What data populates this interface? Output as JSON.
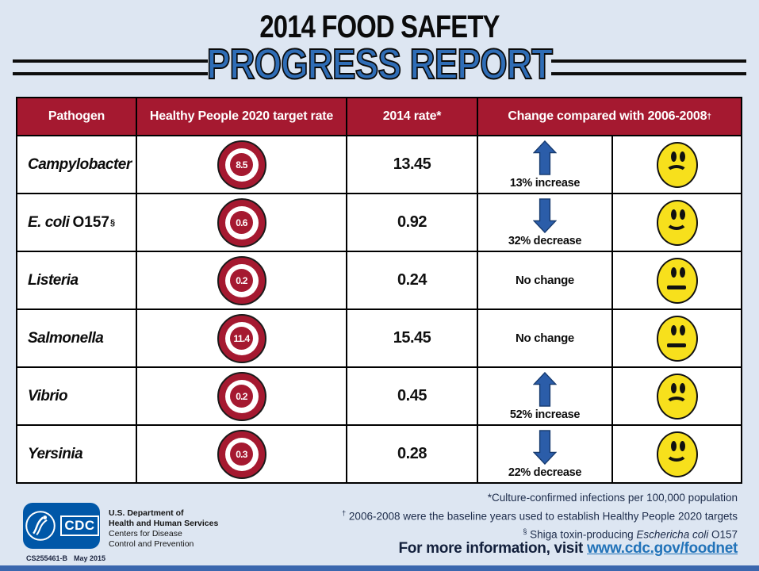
{
  "header": {
    "title_line1": "2014 FOOD SAFETY",
    "title_line2": "PROGRESS REPORT"
  },
  "table": {
    "header": {
      "pathogen": "Pathogen",
      "target": "Healthy People 2020 target rate",
      "rate": "2014 rate*",
      "change": "Change compared with 2006-2008",
      "change_sup": "†"
    },
    "rows": [
      {
        "name": "Campylobacter",
        "name_suffix": "",
        "sup": "",
        "target": "8.5",
        "rate": "13.45",
        "direction": "up",
        "change_label": "13% increase",
        "face": "sad"
      },
      {
        "name": "E. coli",
        "name_suffix": "O157",
        "sup": "§",
        "target": "0.6",
        "rate": "0.92",
        "direction": "down",
        "change_label": "32% decrease",
        "face": "happy"
      },
      {
        "name": "Listeria",
        "name_suffix": "",
        "sup": "",
        "target": "0.2",
        "rate": "0.24",
        "direction": "none",
        "change_label": "No change",
        "face": "neutral"
      },
      {
        "name": "Salmonella",
        "name_suffix": "",
        "sup": "",
        "target": "11.4",
        "rate": "15.45",
        "direction": "none",
        "change_label": "No change",
        "face": "neutral"
      },
      {
        "name": "Vibrio",
        "name_suffix": "",
        "sup": "",
        "target": "0.2",
        "rate": "0.45",
        "direction": "up",
        "change_label": "52% increase",
        "face": "sad"
      },
      {
        "name": "Yersinia",
        "name_suffix": "",
        "sup": "",
        "target": "0.3",
        "rate": "0.28",
        "direction": "down",
        "change_label": "22% decrease",
        "face": "happy"
      }
    ]
  },
  "footer": {
    "cdc_logo_text": "CDC",
    "agency_line1": "U.S. Department of",
    "agency_line2": "Health and Human Services",
    "agency_line3": "Centers for Disease",
    "agency_line4": "Control and Prevention",
    "doc_number": "CS255461-B",
    "doc_date": "May 2015",
    "footnotes": {
      "star": "*Culture-confirmed infections per 100,000 population",
      "dagger_sup": "†",
      "dagger_text": " 2006-2008 were the baseline years used to establish Healthy People 2020 targets",
      "section_sup": "§",
      "section_text": " Shiga toxin-producing ",
      "section_italic": "Eschericha coli",
      "section_tail": " O157"
    },
    "more_info_label": "For more information, visit ",
    "more_info_link": "www.cdc.gov/foodnet"
  },
  "colors": {
    "background": "#dde6f2",
    "crimson": "#a51930",
    "title_blue": "#2f6db6",
    "arrow_blue": "#2b5da9",
    "smiley_yellow": "#f7e01c",
    "link_blue": "#2273b9",
    "logo_blue": "#0057a8",
    "bottom_bar_blue": "#3a67ae"
  }
}
